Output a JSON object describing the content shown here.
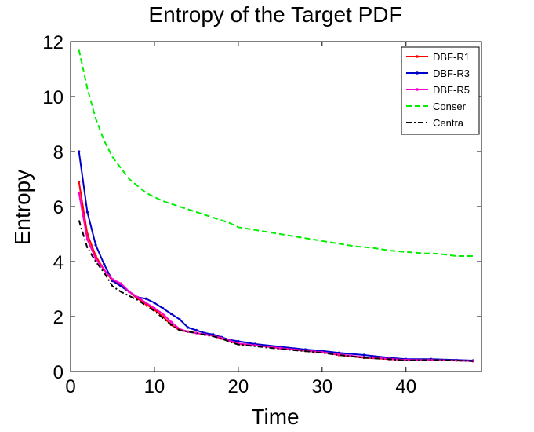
{
  "chart_data": {
    "type": "line",
    "title": "Entropy of the Target PDF",
    "xlabel": "Time",
    "ylabel": "Entropy",
    "xlim": [
      0,
      49
    ],
    "ylim": [
      0,
      12
    ],
    "xticks": [
      0,
      10,
      20,
      30,
      40
    ],
    "yticks": [
      0,
      2,
      4,
      6,
      8,
      10,
      12
    ],
    "grid": false,
    "legend_position": "top-right",
    "series": [
      {
        "name": "DBF-R1",
        "color": "#ff0000",
        "style": "solid",
        "x": [
          1,
          2,
          3,
          4,
          5,
          6,
          7,
          8,
          9,
          10,
          11,
          12,
          13,
          14,
          15,
          16,
          17,
          18,
          19,
          20,
          22,
          25,
          28,
          30,
          32,
          35,
          38,
          40,
          43,
          46,
          48
        ],
        "y": [
          6.9,
          5.0,
          4.2,
          3.7,
          3.3,
          3.15,
          2.9,
          2.65,
          2.45,
          2.25,
          2.0,
          1.7,
          1.5,
          1.45,
          1.4,
          1.35,
          1.3,
          1.2,
          1.1,
          1.0,
          0.95,
          0.85,
          0.75,
          0.7,
          0.6,
          0.5,
          0.45,
          0.42,
          0.42,
          0.4,
          0.38
        ]
      },
      {
        "name": "DBF-R3",
        "color": "#0000cc",
        "style": "solid",
        "x": [
          1,
          2,
          3,
          4,
          5,
          6,
          7,
          8,
          9,
          10,
          11,
          12,
          13,
          14,
          15,
          16,
          17,
          18,
          19,
          20,
          22,
          25,
          28,
          30,
          32,
          35,
          38,
          40,
          43,
          46,
          48
        ],
        "y": [
          8.0,
          5.8,
          4.6,
          3.9,
          3.3,
          3.1,
          2.9,
          2.7,
          2.65,
          2.5,
          2.3,
          2.1,
          1.9,
          1.6,
          1.5,
          1.4,
          1.35,
          1.25,
          1.15,
          1.1,
          1.0,
          0.9,
          0.8,
          0.75,
          0.68,
          0.6,
          0.5,
          0.45,
          0.45,
          0.42,
          0.4
        ]
      },
      {
        "name": "DBF-R5",
        "color": "#ff00cc",
        "style": "solid",
        "x": [
          1,
          2,
          3,
          4,
          5,
          6,
          7,
          8,
          9,
          10,
          11,
          12,
          13,
          14,
          15,
          16,
          17,
          18,
          19,
          20,
          22,
          25,
          28,
          30,
          32,
          35,
          38,
          40,
          43,
          46,
          48
        ],
        "y": [
          6.5,
          4.8,
          4.1,
          3.7,
          3.35,
          3.2,
          2.9,
          2.7,
          2.5,
          2.3,
          2.1,
          1.8,
          1.55,
          1.45,
          1.4,
          1.35,
          1.3,
          1.22,
          1.12,
          1.02,
          0.95,
          0.85,
          0.76,
          0.7,
          0.62,
          0.52,
          0.46,
          0.42,
          0.42,
          0.4,
          0.38
        ]
      },
      {
        "name": "Conser",
        "color": "#00ee00",
        "style": "dashed",
        "x": [
          1,
          2,
          3,
          4,
          5,
          6,
          7,
          8,
          9,
          10,
          11,
          12,
          13,
          14,
          15,
          16,
          17,
          18,
          19,
          20,
          22,
          24,
          26,
          28,
          30,
          32,
          34,
          36,
          38,
          40,
          42,
          44,
          46,
          48
        ],
        "y": [
          11.7,
          10.3,
          9.2,
          8.4,
          7.8,
          7.4,
          7.0,
          6.75,
          6.5,
          6.35,
          6.2,
          6.1,
          6.0,
          5.9,
          5.8,
          5.7,
          5.6,
          5.5,
          5.4,
          5.25,
          5.15,
          5.05,
          4.95,
          4.85,
          4.75,
          4.65,
          4.55,
          4.5,
          4.4,
          4.35,
          4.3,
          4.28,
          4.2,
          4.2
        ]
      },
      {
        "name": "Centra",
        "color": "#000000",
        "style": "dashdot",
        "x": [
          1,
          2,
          3,
          4,
          5,
          6,
          7,
          8,
          9,
          10,
          11,
          12,
          13,
          14,
          15,
          16,
          17,
          18,
          19,
          20,
          22,
          25,
          28,
          30,
          32,
          35,
          38,
          40,
          43,
          46,
          48
        ],
        "y": [
          5.5,
          4.5,
          4.0,
          3.6,
          3.1,
          2.9,
          2.75,
          2.6,
          2.4,
          2.2,
          1.95,
          1.7,
          1.5,
          1.45,
          1.4,
          1.33,
          1.28,
          1.2,
          1.08,
          0.98,
          0.92,
          0.82,
          0.74,
          0.68,
          0.6,
          0.5,
          0.45,
          0.4,
          0.42,
          0.4,
          0.38
        ]
      }
    ]
  }
}
